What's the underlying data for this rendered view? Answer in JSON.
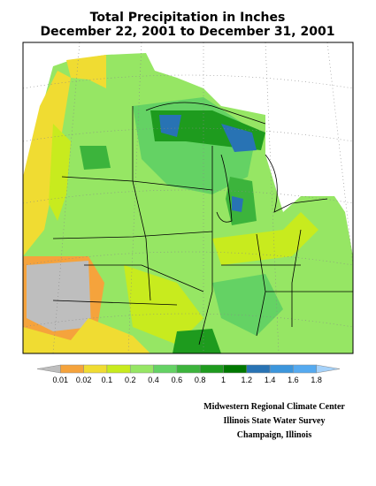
{
  "title": [
    "Total Precipitation in Inches",
    "December 22, 2001 to December 31, 2001"
  ],
  "legend": {
    "labels": [
      "0.01",
      "0.02",
      "0.1",
      "0.2",
      "0.4",
      "0.6",
      "0.8",
      "1",
      "1.2",
      "1.4",
      "1.6",
      "1.8"
    ],
    "colors": [
      "#bebebe",
      "#f5a33c",
      "#f0dc32",
      "#c8eb1e",
      "#96e664",
      "#64d264",
      "#3cb43c",
      "#1e9b1e",
      "#007800",
      "#2873b4",
      "#3c96dc",
      "#55aaf0",
      "#a5d2fa"
    ]
  },
  "credits": [
    "Midwestern Regional Climate Center",
    "Illinois State Water Survey",
    "Champaign, Illinois"
  ]
}
